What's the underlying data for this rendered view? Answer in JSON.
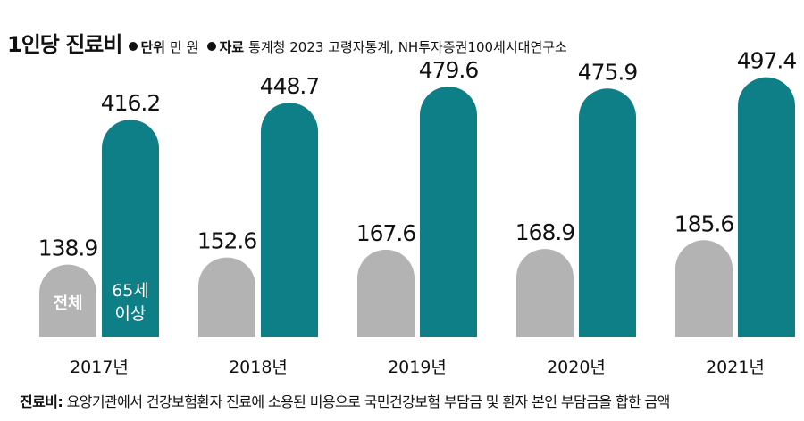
{
  "header": {
    "title": "1인당 진료비",
    "unit_label": "단위",
    "unit_value": "만 원",
    "source_label": "자료",
    "source_value": "통계청 2023 고령자통계, NH투자증권100세시대연구소"
  },
  "footnote": {
    "label": "진료비:",
    "text": "요양기관에서 건강보험환자 진료에 소용된 비용으로 국민건강보험 부담금 및 환자 본인 부담금을 합한 금액"
  },
  "colors": {
    "total": "#b3b3b3",
    "age65": "#0e7f86",
    "inlabel_total": "#ffffff",
    "inlabel_age65": "#ffffff"
  },
  "chart_data": {
    "type": "bar",
    "categories": [
      "2017년",
      "2018년",
      "2019년",
      "2020년",
      "2021년"
    ],
    "series": [
      {
        "name": "전체",
        "values": [
          138.9,
          152.6,
          167.6,
          168.9,
          185.6
        ]
      },
      {
        "name": "65세 이상",
        "values": [
          416.2,
          448.7,
          479.6,
          475.9,
          497.4
        ]
      }
    ],
    "series_labels_inside_first_group": [
      [
        "전체"
      ],
      [
        "65세",
        "이상"
      ]
    ],
    "ylim": [
      0,
      560
    ],
    "grid": false,
    "legend": "none",
    "xlabel": "",
    "ylabel": ""
  }
}
